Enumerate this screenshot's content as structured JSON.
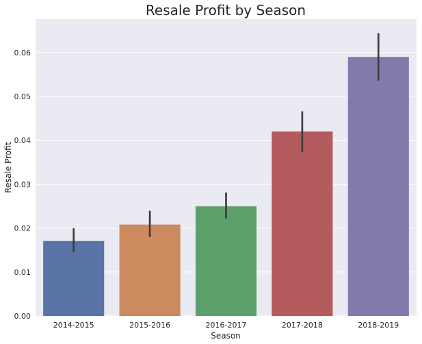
{
  "chart_data": {
    "type": "bar",
    "title": "Resale Profit by Season",
    "xlabel": "Season",
    "ylabel": "Resale Profit",
    "categories": [
      "2014-2015",
      "2015-2016",
      "2016-2017",
      "2017-2018",
      "2018-2019"
    ],
    "values": [
      0.0171,
      0.0208,
      0.025,
      0.042,
      0.059
    ],
    "error_low": [
      0.0145,
      0.018,
      0.0222,
      0.0374,
      0.0536
    ],
    "error_high": [
      0.02,
      0.024,
      0.0281,
      0.0466,
      0.0644
    ],
    "colors": [
      "#5874a6",
      "#cc8a5f",
      "#5ea06c",
      "#b45b5d",
      "#857aac"
    ],
    "yticks": [
      0.0,
      0.01,
      0.02,
      0.03,
      0.04,
      0.05,
      0.06
    ],
    "ytick_labels": [
      "0.00",
      "0.01",
      "0.02",
      "0.03",
      "0.04",
      "0.05",
      "0.06"
    ],
    "ylim": [
      0,
      0.0676
    ],
    "grid": true,
    "background": "#eaeaf2",
    "grid_color": "#ffffff",
    "error_bar_color": "#3d3d3d"
  }
}
